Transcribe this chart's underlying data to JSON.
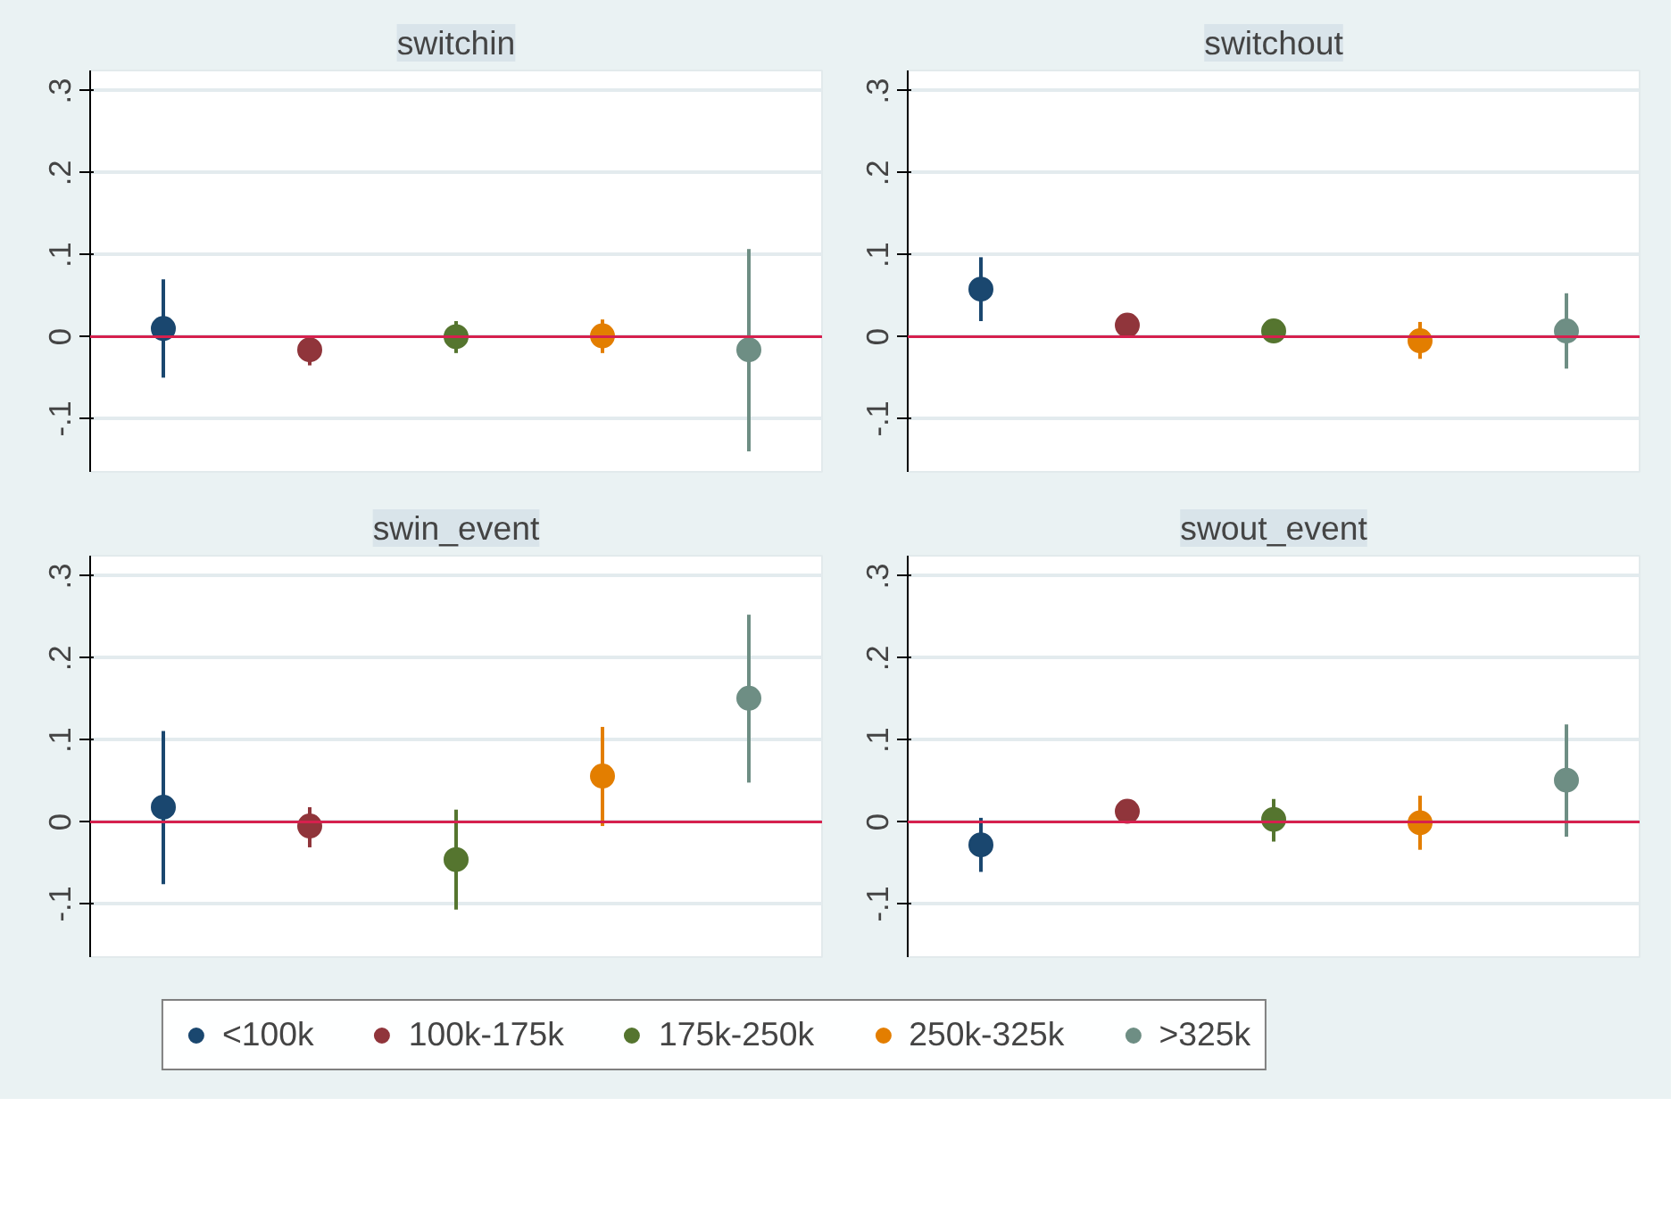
{
  "chart_data": [
    {
      "type": "scatter",
      "title": "switchin",
      "categories": [
        null,
        null,
        null,
        null,
        null
      ],
      "ylim": [
        -0.165,
        0.325
      ],
      "yticks": [
        {
          "value": -0.1,
          "label": "-.1"
        },
        0,
        {
          "value": 0.1,
          "label": ".1"
        },
        {
          "value": 0.2,
          "label": ".2"
        },
        {
          "value": 0.3,
          "label": ".3"
        }
      ],
      "grid": "y",
      "marker": "circle",
      "tick_labels": "y",
      "legend": "bottom",
      "ref_lines": [
        {
          "axis": "y",
          "value": 0,
          "color": "#d6204e"
        }
      ],
      "series": [
        {
          "name": "<100k",
          "color": "#1a476f",
          "values": [
            0.01,
            null,
            null,
            null,
            null
          ],
          "errors": [
            [
              -0.05,
              0.07
            ],
            null,
            null,
            null,
            null
          ]
        },
        {
          "name": "100k-175k",
          "color": "#90353b",
          "values": [
            null,
            -0.016,
            null,
            null,
            null
          ],
          "errors": [
            null,
            [
              -0.035,
              0.0
            ],
            null,
            null,
            null
          ]
        },
        {
          "name": "175k-250k",
          "color": "#55752f",
          "values": [
            null,
            null,
            0.0,
            null,
            null
          ],
          "errors": [
            null,
            null,
            [
              -0.02,
              0.019
            ],
            null,
            null
          ]
        },
        {
          "name": "250k-325k",
          "color": "#e37e00",
          "values": [
            null,
            null,
            null,
            0.001,
            null
          ],
          "errors": [
            null,
            null,
            null,
            [
              -0.02,
              0.021
            ],
            null
          ]
        },
        {
          "name": ">325k",
          "color": "#6e8e84",
          "values": [
            null,
            null,
            null,
            null,
            -0.016
          ],
          "errors": [
            null,
            null,
            null,
            null,
            [
              -0.14,
              0.107
            ]
          ]
        }
      ]
    },
    {
      "type": "scatter",
      "title": "switchout",
      "categories": [
        null,
        null,
        null,
        null,
        null
      ],
      "ylim": [
        -0.165,
        0.325
      ],
      "yticks": [
        {
          "value": -0.1,
          "label": "-.1"
        },
        0,
        {
          "value": 0.1,
          "label": ".1"
        },
        {
          "value": 0.2,
          "label": ".2"
        },
        {
          "value": 0.3,
          "label": ".3"
        }
      ],
      "grid": "y",
      "marker": "circle",
      "ref_lines": [
        {
          "axis": "y",
          "value": 0,
          "color": "#d6204e"
        }
      ],
      "series": [
        {
          "color": "#1a476f",
          "values": [
            0.058,
            null,
            null,
            null,
            null
          ],
          "errors": [
            [
              0.019,
              0.097
            ],
            null,
            null,
            null,
            null
          ]
        },
        {
          "color": "#90353b",
          "values": [
            null,
            0.014,
            null,
            null,
            null
          ]
        },
        {
          "color": "#55752f",
          "values": [
            null,
            null,
            0.007,
            null,
            null
          ]
        },
        {
          "color": "#e37e00",
          "values": [
            null,
            null,
            null,
            -0.005,
            null
          ],
          "errors": [
            null,
            null,
            null,
            [
              -0.027,
              0.018
            ],
            null
          ]
        },
        {
          "color": "#6e8e84",
          "values": [
            null,
            null,
            null,
            null,
            0.007
          ],
          "errors": [
            null,
            null,
            null,
            null,
            [
              -0.039,
              0.053
            ]
          ]
        }
      ]
    },
    {
      "type": "scatter",
      "title": "swin_event",
      "categories": [
        null,
        null,
        null,
        null,
        null
      ],
      "ylim": [
        -0.165,
        0.325
      ],
      "yticks": [
        {
          "value": -0.1,
          "label": "-.1"
        },
        0,
        {
          "value": 0.1,
          "label": ".1"
        },
        {
          "value": 0.2,
          "label": ".2"
        },
        {
          "value": 0.3,
          "label": ".3"
        }
      ],
      "grid": "y",
      "marker": "circle",
      "tick_labels": "y",
      "ref_lines": [
        {
          "axis": "y",
          "value": 0,
          "color": "#d6204e"
        }
      ],
      "series": [
        {
          "color": "#1a476f",
          "values": [
            0.018,
            null,
            null,
            null,
            null
          ],
          "errors": [
            [
              -0.076,
              0.111
            ],
            null,
            null,
            null,
            null
          ]
        },
        {
          "color": "#90353b",
          "values": [
            null,
            -0.005,
            null,
            null,
            null
          ],
          "errors": [
            null,
            [
              -0.031,
              0.018
            ],
            null,
            null,
            null
          ]
        },
        {
          "color": "#55752f",
          "values": [
            null,
            null,
            -0.046,
            null,
            null
          ],
          "errors": [
            null,
            null,
            [
              -0.107,
              0.015
            ],
            null,
            null
          ]
        },
        {
          "color": "#e37e00",
          "values": [
            null,
            null,
            null,
            0.056,
            null
          ],
          "errors": [
            null,
            null,
            null,
            [
              -0.005,
              0.116
            ],
            null
          ]
        },
        {
          "color": "#6e8e84",
          "values": [
            null,
            null,
            null,
            null,
            0.151
          ],
          "errors": [
            null,
            null,
            null,
            null,
            [
              0.048,
              0.253
            ]
          ]
        }
      ]
    },
    {
      "type": "scatter",
      "title": "swout_event",
      "categories": [
        null,
        null,
        null,
        null,
        null
      ],
      "ylim": [
        -0.165,
        0.325
      ],
      "yticks": [
        {
          "value": -0.1,
          "label": "-.1"
        },
        0,
        {
          "value": 0.1,
          "label": ".1"
        },
        {
          "value": 0.2,
          "label": ".2"
        },
        {
          "value": 0.3,
          "label": ".3"
        }
      ],
      "grid": "y",
      "marker": "circle",
      "ref_lines": [
        {
          "axis": "y",
          "value": 0,
          "color": "#d6204e"
        }
      ],
      "series": [
        {
          "color": "#1a476f",
          "values": [
            -0.028,
            null,
            null,
            null,
            null
          ],
          "errors": [
            [
              -0.061,
              0.005
            ],
            null,
            null,
            null,
            null
          ]
        },
        {
          "color": "#90353b",
          "values": [
            null,
            0.013,
            null,
            null,
            null
          ]
        },
        {
          "color": "#55752f",
          "values": [
            null,
            null,
            0.003,
            null,
            null
          ],
          "errors": [
            null,
            null,
            [
              -0.024,
              0.028
            ],
            null,
            null
          ]
        },
        {
          "color": "#e37e00",
          "values": [
            null,
            null,
            null,
            -0.001,
            null
          ],
          "errors": [
            null,
            null,
            null,
            [
              -0.034,
              0.032
            ],
            null
          ]
        },
        {
          "color": "#6e8e84",
          "values": [
            null,
            null,
            null,
            null,
            0.051
          ],
          "errors": [
            null,
            null,
            null,
            null,
            [
              -0.018,
              0.119
            ]
          ]
        }
      ]
    }
  ]
}
